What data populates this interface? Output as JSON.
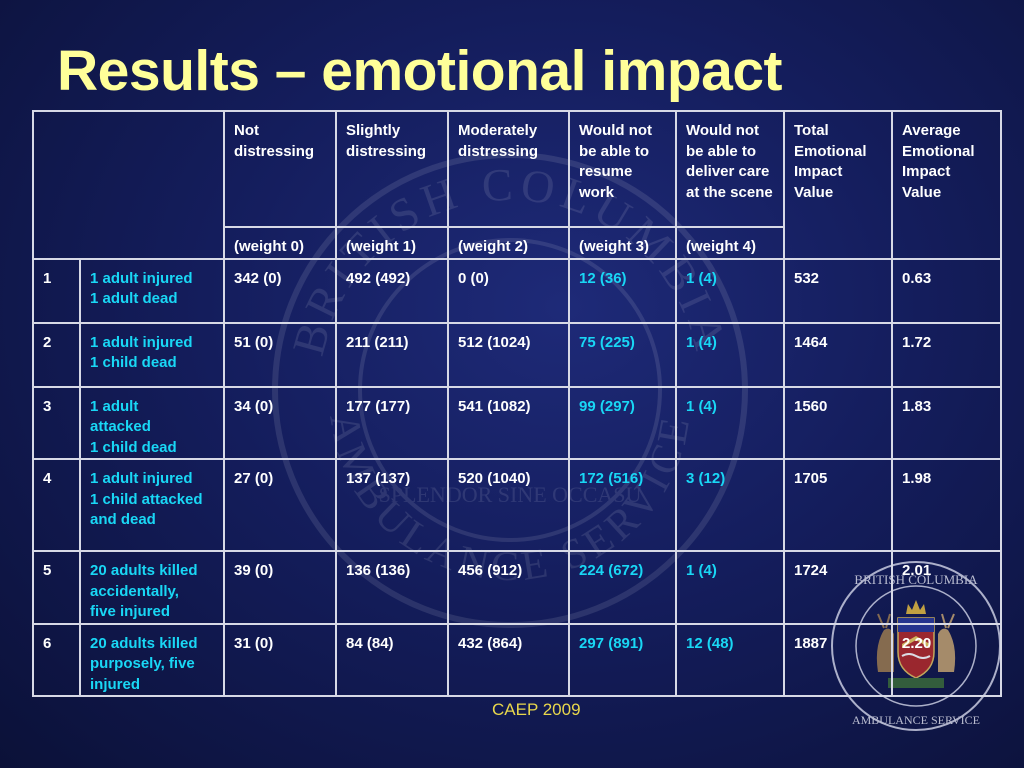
{
  "slide": {
    "title": "Results – emotional impact",
    "footer": "CAEP 2009"
  },
  "colors": {
    "title": "#ffff99",
    "text": "#ffffff",
    "highlight": "#19d7f5",
    "footer": "#e8d74c",
    "background": "#141d5c"
  },
  "watermark": {
    "top_text": "BRITISH COLUMBIA",
    "bottom_text": "AMBULANCE SERVICE",
    "motto": "SPLENDOR SINE OCCASU"
  },
  "table": {
    "headers": [
      {
        "label": "Not distressing",
        "weight": "(weight 0)"
      },
      {
        "label": "Slightly distressing",
        "weight": "(weight 1)"
      },
      {
        "label": "Moderately distressing",
        "weight": "(weight 2)"
      },
      {
        "label": "Would not be able to resume work",
        "weight": "(weight 3)"
      },
      {
        "label": "Would not be able to deliver care at the scene",
        "weight": "(weight 4)"
      },
      {
        "label": "Total Emotional Impact Value"
      },
      {
        "label": "Average Emotional Impact Value"
      }
    ],
    "rows": [
      {
        "num": "1",
        "scenario": [
          "1 adult injured",
          "1 adult dead"
        ],
        "not": "342 (0)",
        "slight": "492 (492)",
        "moderate": "0 (0)",
        "resume": "12 (36)",
        "deliver": "1 (4)",
        "total": "532",
        "average": "0.63"
      },
      {
        "num": "2",
        "scenario": [
          "1 adult injured",
          "1 child dead"
        ],
        "not": "51 (0)",
        "slight": "211 (211)",
        "moderate": "512 (1024)",
        "resume": "75 (225)",
        "deliver": "1 (4)",
        "total": "1464",
        "average": "1.72"
      },
      {
        "num": "3",
        "scenario": [
          "1 adult",
          "attacked",
          "1 child dead"
        ],
        "not": "34 (0)",
        "slight": "177 (177)",
        "moderate": "541 (1082)",
        "resume": "99 (297)",
        "deliver": "1 (4)",
        "total": "1560",
        "average": "1.83"
      },
      {
        "num": "4",
        "scenario": [
          "1 adult injured",
          "1 child attacked",
          "and dead"
        ],
        "not": "27 (0)",
        "slight": "137 (137)",
        "moderate": "520 (1040)",
        "resume": "172 (516)",
        "deliver": "3 (12)",
        "total": "1705",
        "average": "1.98"
      },
      {
        "num": "5",
        "scenario": [
          "20 adults killed",
          "accidentally,",
          "five injured"
        ],
        "not": "39 (0)",
        "slight": "136 (136)",
        "moderate": "456 (912)",
        "resume": "224 (672)",
        "deliver": "1 (4)",
        "total": "1724",
        "average": "2.01"
      },
      {
        "num": "6",
        "scenario": [
          "20 adults killed",
          "purposely, five",
          "injured"
        ],
        "not": "31 (0)",
        "slight": "84 (84)",
        "moderate": "432 (864)",
        "resume": "297 (891)",
        "deliver": "12 (48)",
        "total": "1887",
        "average": "2.20"
      }
    ]
  }
}
